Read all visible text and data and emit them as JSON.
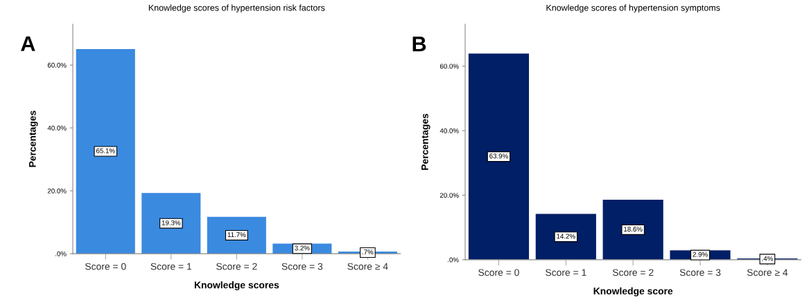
{
  "chart_data": [
    {
      "type": "bar",
      "title": "Knowledge scores of hypertension risk factors",
      "xlabel": "Knowledge scores",
      "ylabel": "Percentages",
      "annotations": [
        "A"
      ],
      "categories": [
        "Score = 0",
        "Score = 1",
        "Score = 2",
        "Score = 3",
        "Score ≥ 4"
      ],
      "values": [
        65.1,
        19.3,
        11.7,
        3.2,
        0.7
      ],
      "value_labels": [
        "65.1%",
        "19.3%",
        "11.7%",
        "3.2%",
        ".7%"
      ],
      "color": "#3a8ae0",
      "ylim": [
        0,
        73
      ],
      "yticks": [
        {
          "value": 0,
          "label": ".0%"
        },
        {
          "value": 20,
          "label": "20.0%"
        },
        {
          "value": 40,
          "label": "40.0%"
        },
        {
          "value": 60,
          "label": "60.0%"
        }
      ],
      "grid": false,
      "legend": false
    },
    {
      "type": "bar",
      "title": "Knowledge scores of hypertension symptoms",
      "xlabel": "Knowledge score",
      "ylabel": "Percentages",
      "annotations": [
        "B"
      ],
      "categories": [
        "Score = 0",
        "Score = 1",
        "Score = 2",
        "Score = 3",
        "Score ≥ 4"
      ],
      "values": [
        63.9,
        14.2,
        18.6,
        2.9,
        0.4
      ],
      "value_labels": [
        "63.9%",
        "14.2%",
        "18.6%",
        "2.9%",
        ".4%"
      ],
      "color": "#001f66",
      "ylim": [
        0,
        73
      ],
      "yticks": [
        {
          "value": 0,
          "label": ".0%"
        },
        {
          "value": 20,
          "label": "20.0%"
        },
        {
          "value": 40,
          "label": "40.0%"
        },
        {
          "value": 60,
          "label": "60.0%"
        }
      ],
      "grid": false,
      "legend": false
    }
  ]
}
